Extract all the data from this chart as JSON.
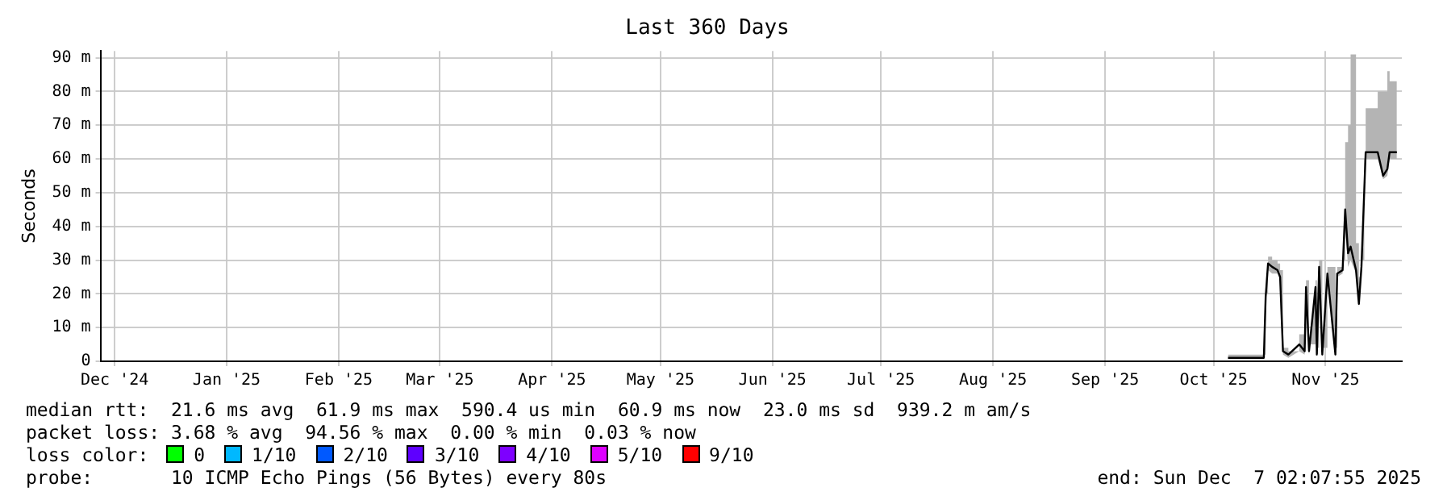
{
  "chart_data": {
    "type": "line",
    "title": "Last 360 Days",
    "ylabel": "Seconds",
    "legend_title": "loss color:",
    "legend": "bottom",
    "grid": true,
    "marker": "none",
    "line_style": "solid",
    "xlim": [
      "2024-12-12T02:07",
      "2025-12-07T02:07"
    ],
    "xticks": [
      {
        "value": "2024-12-16",
        "label": "Dec '24"
      },
      {
        "value": "2025-01-16",
        "label": "Jan '25"
      },
      {
        "value": "2025-02-16",
        "label": "Feb '25"
      },
      {
        "value": "2025-03-16",
        "label": "Mar '25"
      },
      {
        "value": "2025-04-16",
        "label": "Apr '25"
      },
      {
        "value": "2025-05-16",
        "label": "May '25"
      },
      {
        "value": "2025-06-16",
        "label": "Jun '25"
      },
      {
        "value": "2025-07-16",
        "label": "Jul '25"
      },
      {
        "value": "2025-08-16",
        "label": "Aug '25"
      },
      {
        "value": "2025-09-16",
        "label": "Sep '25"
      },
      {
        "value": "2025-10-16",
        "label": "Oct '25"
      },
      {
        "value": "2025-11-16",
        "label": "Nov '25"
      }
    ],
    "ylim": [
      0,
      92
    ],
    "yticks": [
      0,
      {
        "value": 10,
        "label": "10 m"
      },
      {
        "value": 20,
        "label": "20 m"
      },
      {
        "value": 30,
        "label": "30 m"
      },
      {
        "value": 40,
        "label": "40 m"
      },
      {
        "value": 50,
        "label": "50 m"
      },
      {
        "value": 60,
        "label": "60 m"
      },
      {
        "value": 70,
        "label": "70 m"
      },
      {
        "value": 80,
        "label": "80 m"
      },
      {
        "value": 90,
        "label": "90 m"
      }
    ],
    "x": [
      "2025-10-20",
      "2025-10-25T10:00",
      "2025-10-29T22:00",
      "2025-10-30T10:00",
      "2025-10-31T02:00",
      "2025-11-01T05:00",
      "2025-11-02T17:00",
      "2025-11-03T10:00",
      "2025-11-04T05:00",
      "2025-11-05T17:00",
      "2025-11-08T17:00",
      "2025-11-10T05:00",
      "2025-11-10T14:00",
      "2025-11-11T10:00",
      "2025-11-13T05:00",
      "2025-11-13T14:00",
      "2025-11-14T05:00",
      "2025-11-15T02:00",
      "2025-11-16T12:00",
      "2025-11-18T17:00",
      "2025-11-19T05:00",
      "2025-11-20T17:00",
      "2025-11-21T10:00",
      "2025-11-22T05:00",
      "2025-11-22T22:00",
      "2025-11-24T10:00",
      "2025-11-25T05:00",
      "2025-11-25T22:00",
      "2025-11-26T17:00",
      "2025-11-27T02:00",
      "2025-11-30T10:00",
      "2025-12-01T22:00",
      "2025-12-03T02:00",
      "2025-12-03T17:00",
      "2025-12-05T17:00"
    ],
    "series": [
      {
        "color": "#000000",
        "values": [
          1,
          1,
          1,
          19,
          29,
          28,
          27,
          25,
          3,
          2,
          5,
          3,
          22,
          3,
          22,
          2,
          28,
          2,
          26,
          2,
          26,
          27,
          45,
          32,
          34,
          27,
          17,
          28,
          51,
          62,
          62,
          55,
          57,
          62,
          62
        ],
        "lower": [
          1,
          1,
          1,
          19,
          27,
          26,
          26,
          24,
          2,
          1,
          3,
          2,
          20,
          2,
          20,
          1,
          26,
          1,
          25,
          1,
          25,
          26,
          40,
          28,
          30,
          26,
          16,
          27,
          50,
          60,
          60,
          54,
          55,
          60,
          60
        ],
        "upper": [
          2,
          2,
          2,
          20,
          31,
          30,
          29,
          27,
          4,
          3,
          8,
          5,
          24,
          5,
          24,
          4,
          30,
          4,
          28,
          4,
          28,
          30,
          65,
          70,
          91,
          35,
          25,
          30,
          60,
          75,
          80,
          80,
          86,
          83,
          91
        ]
      },
      {
        "name": "0",
        "color": "#00ff00",
        "values": [
          null,
          null,
          null,
          null,
          null,
          null,
          null,
          null,
          null,
          null,
          null,
          null,
          null,
          null,
          null,
          null,
          null,
          null,
          null,
          null,
          null,
          null,
          null,
          null,
          null,
          null,
          null,
          null,
          null,
          null,
          null,
          null,
          null,
          null,
          null
        ]
      },
      {
        "name": "1/10",
        "color": "#00b8ff",
        "values": [
          null,
          null,
          null,
          null,
          null,
          null,
          null,
          null,
          null,
          null,
          null,
          null,
          null,
          null,
          null,
          null,
          null,
          null,
          null,
          null,
          null,
          null,
          null,
          null,
          null,
          null,
          null,
          null,
          null,
          null,
          null,
          null,
          null,
          null,
          null
        ]
      },
      {
        "name": "2/10",
        "color": "#0059ff",
        "values": [
          null,
          null,
          null,
          null,
          null,
          null,
          null,
          null,
          null,
          null,
          null,
          null,
          null,
          null,
          null,
          null,
          null,
          null,
          null,
          null,
          null,
          null,
          null,
          null,
          null,
          null,
          null,
          null,
          null,
          null,
          null,
          null,
          null,
          null,
          null
        ]
      },
      {
        "name": "3/10",
        "color": "#5e00ff",
        "values": [
          null,
          null,
          null,
          null,
          null,
          null,
          null,
          null,
          null,
          null,
          null,
          null,
          null,
          null,
          null,
          null,
          null,
          null,
          null,
          null,
          null,
          null,
          null,
          null,
          null,
          null,
          null,
          null,
          null,
          null,
          null,
          null,
          null,
          null,
          null
        ]
      },
      {
        "name": "4/10",
        "color": "#7e00ff",
        "values": [
          null,
          null,
          null,
          null,
          null,
          null,
          null,
          null,
          null,
          null,
          null,
          null,
          null,
          null,
          null,
          null,
          null,
          null,
          null,
          null,
          null,
          null,
          null,
          null,
          null,
          null,
          null,
          null,
          null,
          null,
          null,
          null,
          null,
          null,
          null
        ]
      },
      {
        "name": "5/10",
        "color": "#dd00ff",
        "values": [
          null,
          null,
          null,
          null,
          null,
          null,
          null,
          null,
          null,
          null,
          null,
          null,
          null,
          null,
          null,
          null,
          null,
          null,
          null,
          null,
          null,
          null,
          null,
          null,
          null,
          null,
          null,
          null,
          null,
          null,
          null,
          null,
          null,
          null,
          null
        ]
      },
      {
        "name": "9/10",
        "color": "#ff0000",
        "values": [
          null,
          null,
          null,
          null,
          null,
          null,
          null,
          null,
          null,
          null,
          null,
          null,
          null,
          null,
          null,
          null,
          null,
          null,
          null,
          null,
          null,
          null,
          null,
          null,
          null,
          null,
          null,
          null,
          null,
          null,
          null,
          null,
          null,
          null,
          null
        ]
      }
    ],
    "annotations": [
      "median rtt:  21.6 ms avg  61.9 ms max  590.4 us min  60.9 ms now  23.0 ms sd  939.2 m am/s",
      "packet loss: 3.68 % avg  94.56 % max  0.00 % min  0.03 % now",
      "probe:       10 ICMP Echo Pings (56 Bytes) every 80s",
      "end: Sun Dec  7 02:07:55 2025"
    ]
  }
}
